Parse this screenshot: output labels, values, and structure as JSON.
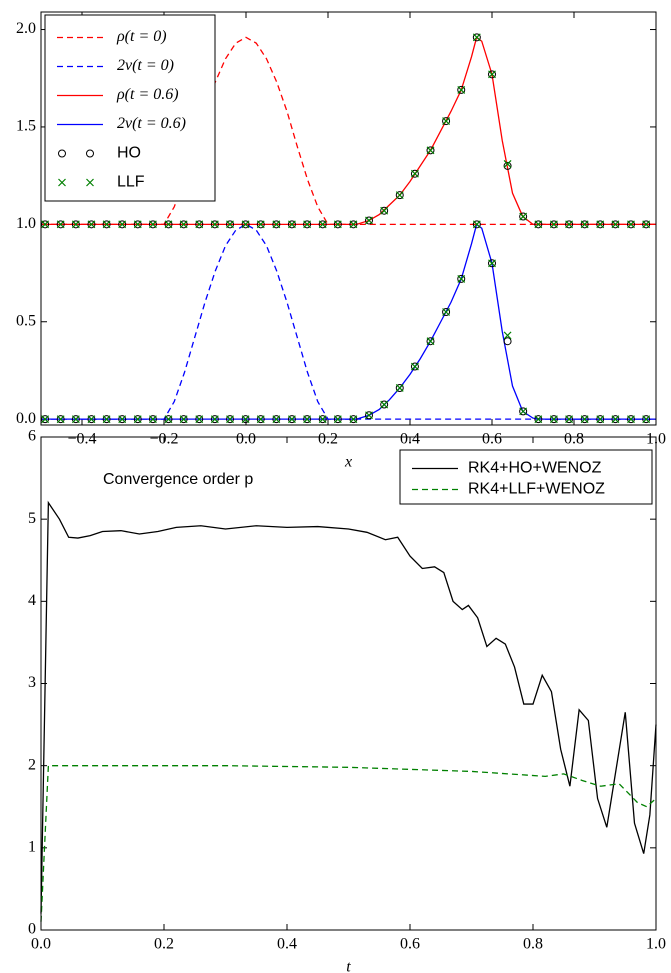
{
  "chart_data": [
    {
      "type": "line",
      "xlabel": "x",
      "xlim": [
        -0.5,
        1.0
      ],
      "ylim": [
        -0.03,
        2.09
      ],
      "xticks": [
        {
          "value": -0.4,
          "label": "−0.4"
        },
        {
          "value": -0.2,
          "label": "−0.2"
        },
        {
          "value": 0,
          "label": "0.0"
        },
        0.2,
        0.4,
        0.6,
        0.8,
        {
          "value": 1,
          "label": "1.0"
        }
      ],
      "yticks": [
        {
          "value": 0,
          "label": "0.0"
        },
        0.5,
        {
          "value": 1,
          "label": "1.0"
        },
        1.5,
        {
          "value": 2,
          "label": "2.0"
        }
      ],
      "legend": "upper left",
      "x": [
        -0.49,
        -0.452,
        -0.415,
        -0.377,
        -0.34,
        -0.302,
        -0.264,
        -0.227,
        -0.189,
        -0.152,
        -0.114,
        -0.076,
        -0.039,
        -0.001,
        0.036,
        0.074,
        0.112,
        0.149,
        0.187,
        0.224,
        0.262,
        0.3,
        0.337,
        0.375,
        0.412,
        0.45,
        0.488,
        0.525,
        0.563,
        0.6,
        0.638,
        0.676,
        0.713,
        0.751,
        0.788,
        0.826,
        0.864,
        0.901,
        0.939,
        0.976
      ],
      "series": [
        {
          "name": "ρ(t = 0)",
          "color": "#ff0000",
          "dash": true,
          "x": [
            -0.5,
            -0.2,
            -0.175,
            -0.15,
            -0.125,
            -0.1,
            -0.075,
            -0.05,
            -0.025,
            0,
            0.025,
            0.05,
            0.075,
            0.1,
            0.125,
            0.15,
            0.175,
            0.2,
            1.0
          ],
          "values": [
            1,
            1,
            1.09,
            1.23,
            1.4,
            1.58,
            1.73,
            1.85,
            1.93,
            1.96,
            1.93,
            1.85,
            1.73,
            1.58,
            1.4,
            1.23,
            1.09,
            1,
            1
          ]
        },
        {
          "name": "2v(t = 0)",
          "color": "#0000ff",
          "dash": true,
          "x": [
            -0.5,
            -0.2,
            -0.175,
            -0.15,
            -0.125,
            -0.1,
            -0.075,
            -0.05,
            -0.025,
            0,
            0.025,
            0.05,
            0.075,
            0.1,
            0.125,
            0.15,
            0.175,
            0.2,
            1.0
          ],
          "values": [
            0,
            0,
            0.09,
            0.24,
            0.42,
            0.6,
            0.76,
            0.89,
            0.97,
            1.0,
            0.97,
            0.89,
            0.76,
            0.6,
            0.42,
            0.24,
            0.09,
            0,
            0
          ]
        },
        {
          "name": "ρ(t = 0.6)",
          "color": "#ff0000",
          "x": [
            -0.5,
            0.27,
            0.3,
            0.325,
            0.35,
            0.375,
            0.4,
            0.425,
            0.45,
            0.475,
            0.5,
            0.525,
            0.55,
            0.5625,
            0.575,
            0.6,
            0.625,
            0.65,
            0.675,
            0.7,
            0.725,
            1.0
          ],
          "values": [
            1,
            1,
            1.02,
            1.05,
            1.1,
            1.15,
            1.22,
            1.3,
            1.38,
            1.48,
            1.58,
            1.69,
            1.86,
            1.96,
            1.94,
            1.77,
            1.43,
            1.16,
            1.04,
            1.0,
            1,
            1
          ]
        },
        {
          "name": "2v(t = 0.6)",
          "color": "#0000ff",
          "x": [
            -0.5,
            0.27,
            0.3,
            0.325,
            0.35,
            0.375,
            0.4,
            0.425,
            0.45,
            0.475,
            0.5,
            0.525,
            0.55,
            0.5625,
            0.575,
            0.6,
            0.625,
            0.65,
            0.675,
            0.7,
            0.725,
            1.0
          ],
          "values": [
            0,
            0,
            0.02,
            0.05,
            0.1,
            0.16,
            0.23,
            0.31,
            0.4,
            0.5,
            0.6,
            0.72,
            0.9,
            1.0,
            0.98,
            0.8,
            0.45,
            0.17,
            0.04,
            0.005,
            0,
            0
          ]
        },
        {
          "name": "HO",
          "color": "#000000",
          "marker": "circle",
          "values": [
            1,
            1,
            1,
            1,
            1,
            1,
            1,
            1,
            1,
            1,
            1,
            1,
            1,
            1,
            1,
            1,
            1,
            1,
            1,
            1,
            1,
            1.02,
            1.07,
            1.15,
            1.26,
            1.38,
            1.53,
            1.69,
            1.96,
            1.77,
            1.3,
            1.04,
            1.0,
            1,
            1,
            1,
            1,
            1,
            1,
            1
          ]
        },
        {
          "name": "LLF",
          "color": "#008000",
          "marker": "cross",
          "values": [
            1,
            1,
            1,
            1,
            1,
            1,
            1,
            1,
            1,
            1,
            1,
            1,
            1,
            1,
            1,
            1,
            1,
            1,
            1,
            1,
            1,
            1.02,
            1.07,
            1.15,
            1.26,
            1.38,
            1.53,
            1.69,
            1.96,
            1.77,
            1.31,
            1.04,
            1.0,
            1,
            1,
            1,
            1,
            1,
            1,
            1
          ]
        },
        {
          "name": "HO",
          "color": "#000000",
          "marker": "circle",
          "values": [
            0,
            0,
            0,
            0,
            0,
            0,
            0,
            0,
            0,
            0,
            0,
            0,
            0,
            0,
            0,
            0,
            0,
            0,
            0,
            0,
            0,
            0.02,
            0.075,
            0.16,
            0.27,
            0.4,
            0.55,
            0.72,
            1.0,
            0.8,
            0.4,
            0.04,
            0.0,
            0,
            0,
            0,
            0,
            0,
            0,
            0
          ]
        },
        {
          "name": "LLF",
          "color": "#008000",
          "marker": "cross",
          "values": [
            0,
            0,
            0,
            0,
            0,
            0,
            0,
            0,
            0,
            0,
            0,
            0,
            0,
            0,
            0,
            0,
            0,
            0,
            0,
            0,
            0,
            0.02,
            0.075,
            0.16,
            0.27,
            0.4,
            0.55,
            0.72,
            1.0,
            0.8,
            0.43,
            0.04,
            0.0,
            0,
            0,
            0,
            0,
            0,
            0,
            0
          ]
        }
      ]
    },
    {
      "type": "line",
      "xlabel": "t",
      "annotation": "Convergence order p",
      "xlim": [
        0,
        1
      ],
      "ylim": [
        0,
        6
      ],
      "xticks": [
        {
          "value": 0,
          "label": "0.0"
        },
        0.2,
        0.4,
        0.6,
        0.8,
        {
          "value": 1,
          "label": "1.0"
        }
      ],
      "yticks": [
        0,
        1,
        2,
        3,
        4,
        5,
        6
      ],
      "legend": "upper right",
      "series": [
        {
          "name": "RK4+HO+WENOZ",
          "color": "#000000",
          "x": [
            0,
            0.012,
            0.03,
            0.045,
            0.06,
            0.08,
            0.1,
            0.13,
            0.16,
            0.19,
            0.22,
            0.26,
            0.3,
            0.35,
            0.4,
            0.45,
            0.5,
            0.53,
            0.56,
            0.58,
            0.6,
            0.62,
            0.64,
            0.655,
            0.67,
            0.685,
            0.695,
            0.71,
            0.725,
            0.74,
            0.755,
            0.77,
            0.785,
            0.8,
            0.815,
            0.83,
            0.845,
            0.86,
            0.875,
            0.89,
            0.905,
            0.92,
            0.935,
            0.95,
            0.965,
            0.98,
            0.99,
            1.0
          ],
          "values": [
            0.2,
            5.2,
            5.0,
            4.78,
            4.77,
            4.8,
            4.85,
            4.86,
            4.82,
            4.85,
            4.9,
            4.92,
            4.88,
            4.92,
            4.9,
            4.91,
            4.88,
            4.84,
            4.75,
            4.78,
            4.55,
            4.4,
            4.42,
            4.35,
            4.0,
            3.9,
            3.95,
            3.8,
            3.45,
            3.55,
            3.48,
            3.2,
            2.75,
            2.75,
            3.1,
            2.9,
            2.2,
            1.75,
            2.68,
            2.55,
            1.6,
            1.25,
            1.95,
            2.65,
            1.3,
            0.93,
            1.4,
            2.5
          ]
        },
        {
          "name": "RK4+LLF+WENOZ",
          "color": "#008000",
          "dash": true,
          "x": [
            0,
            0.012,
            0.3,
            0.5,
            0.7,
            0.82,
            0.85,
            0.88,
            0.91,
            0.94,
            0.97,
            0.985,
            1.0
          ],
          "values": [
            0.1,
            2.0,
            2.0,
            1.98,
            1.93,
            1.87,
            1.9,
            1.82,
            1.75,
            1.78,
            1.55,
            1.5,
            1.6
          ]
        }
      ]
    }
  ]
}
